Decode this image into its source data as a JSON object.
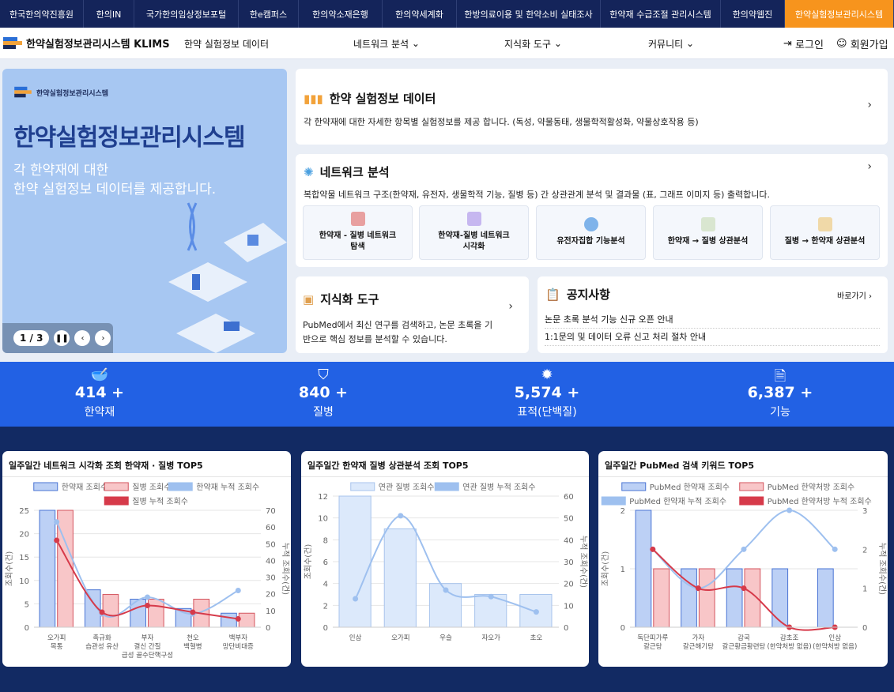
{
  "topbar": [
    "한국한의약진흥원",
    "한의IN",
    "국가한의임상정보포털",
    "한e캠퍼스",
    "한의약소재은행",
    "한의약세계화",
    "한방의료이용 및 한약소비 실태조사",
    "한약재 수급조절 관리시스템",
    "한의약웹진",
    "한약실험정보관리시스템"
  ],
  "header": {
    "logo": "한약실험정보관리시스템 KLIMS",
    "nav": [
      "한약 실험정보 데이터",
      "네트워크 분석",
      "지식화 도구",
      "커뮤니티"
    ],
    "login": "로그인",
    "signup": "회원가입"
  },
  "hero": {
    "brand": "한약실험정보관리시스템",
    "title": "한약실험정보관리시스템",
    "line1": "각 한약재에 대한",
    "line2": "한약 실험정보 데이터를 제공합니다.",
    "page": "1 / 3"
  },
  "data_card": {
    "title": "한약 실험정보 데이터",
    "desc": "각 한약재에 대한 자세한 항목별 실험정보를 제공 합니다. (독성, 약물동태, 생물학적활성화, 약물상호작용 등)"
  },
  "network_card": {
    "title": "네트워크 분석",
    "desc": "복합약물 네트워크 구조(한약재, 유전자, 생물학적 기능, 질병 등) 간 상관관계 분석 및 결과물 (표, 그래프 이미지 등) 출력합니다.",
    "tiles": [
      [
        "한약재 - 질병 네트워크",
        "탐색"
      ],
      [
        "한약재-질병 네트워크",
        "시각화"
      ],
      [
        "유전자집합 기능분석",
        ""
      ],
      [
        "한약재 → 질병 상관분석",
        ""
      ],
      [
        "질병 → 한약재 상관분석",
        ""
      ]
    ]
  },
  "knowledge_card": {
    "title": "지식화 도구",
    "desc1": "PubMed에서 최신 연구를 검색하고, 논문 초록을 기",
    "desc2": "반으로 핵심 정보를 분석할 수 있습니다."
  },
  "notice": {
    "title": "공지사항",
    "more": "바로가기",
    "items": [
      "논문 초록 분석 기능 신규 오픈 안내",
      "1:1문의 및 데이터 오류 신고 처리 절차 안내"
    ]
  },
  "stats": [
    {
      "icon": "herb-bowl-icon",
      "value": "414 +",
      "label": "한약재"
    },
    {
      "icon": "shield-icon",
      "value": "840 +",
      "label": "질병"
    },
    {
      "icon": "virus-icon",
      "value": "5,574 +",
      "label": "표적(단백질)"
    },
    {
      "icon": "document-icon",
      "value": "6,387 +",
      "label": "기능"
    }
  ],
  "colors": {
    "navy": "#14245a",
    "accent": "#f7941d",
    "blue": "#2261e4"
  },
  "chart_data": [
    {
      "type": "bar",
      "title": "일주일간 네트워크 시각화 조회 한약재 · 질병 TOP5",
      "ylabel": "조회수(건)",
      "y2label": "누적 조회수(건)",
      "ylim": [
        0,
        25
      ],
      "y2lim": [
        0,
        70
      ],
      "yticks": [
        0,
        5,
        10,
        15,
        20,
        25
      ],
      "y2ticks": [
        0,
        10,
        20,
        30,
        40,
        50,
        60,
        70
      ],
      "categories": [
        [
          "오가피",
          "목통"
        ],
        [
          "촉규화",
          "습관성 유산"
        ],
        [
          "부자",
          "결신 간질",
          "급성 골수단핵구성"
        ],
        [
          "천오",
          "백혈병"
        ],
        [
          "백부자",
          "망단비대증"
        ]
      ],
      "bars": [
        {
          "name": "한약재 조회수",
          "values": [
            25,
            8,
            6,
            4,
            3
          ],
          "fill": "#bcd0f5",
          "stroke": "#4a74d4"
        },
        {
          "name": "질병 조회수",
          "values": [
            25,
            7,
            6,
            6,
            3
          ],
          "fill": "#f8c6c8",
          "stroke": "#d4545e"
        }
      ],
      "lines": [
        {
          "name": "한약재 누적 조회수",
          "values": [
            63,
            8,
            18,
            8,
            22
          ],
          "color": "#9ec0ef"
        },
        {
          "name": "질병 누적 조회수",
          "values": [
            52,
            9,
            13,
            9,
            5
          ],
          "color": "#d63a4a"
        }
      ]
    },
    {
      "type": "bar",
      "title": "일주일간 한약재 질병 상관분석 조회 TOP5",
      "ylabel": "조회수(건)",
      "y2label": "누적 조회수(건)",
      "ylim": [
        0,
        12
      ],
      "y2lim": [
        0,
        60
      ],
      "yticks": [
        0,
        2,
        4,
        6,
        8,
        10,
        12
      ],
      "y2ticks": [
        0,
        10,
        20,
        30,
        40,
        50,
        60
      ],
      "categories": [
        [
          "인삼"
        ],
        [
          "오가피"
        ],
        [
          "우슬"
        ],
        [
          "자오가"
        ],
        [
          "초오"
        ]
      ],
      "bars": [
        {
          "name": "연관 질병 조회수",
          "values": [
            12,
            9,
            4,
            3,
            3
          ],
          "fill": "#dce9fb",
          "stroke": "#a8c4ec"
        }
      ],
      "lines": [
        {
          "name": "연관 질병 누적 조회수",
          "values": [
            13,
            51,
            17,
            14,
            7
          ],
          "color": "#9ec0ef"
        }
      ]
    },
    {
      "type": "bar",
      "title": "일주일간 PubMed 검색 키워드 TOP5",
      "ylabel": "조회수(건)",
      "y2label": "누적 조회수(건)",
      "ylim": [
        0,
        2
      ],
      "y2lim": [
        0,
        3
      ],
      "yticks": [
        0,
        1,
        2
      ],
      "y2ticks": [
        0,
        1,
        2,
        3
      ],
      "categories": [
        [
          "독단피가루",
          "갈근탕"
        ],
        [
          "가자",
          "갈근해기탕"
        ],
        [
          "감국",
          "갈근황금황련탕"
        ],
        [
          "감초조",
          "(한약처방 없음)"
        ],
        [
          "인삼",
          "(한약처방 없음)"
        ]
      ],
      "bars": [
        {
          "name": "PubMed 한약재 조회수",
          "values": [
            2,
            1,
            1,
            1,
            1
          ],
          "fill": "#bcd0f5",
          "stroke": "#4a74d4"
        },
        {
          "name": "PubMed 한약처방 조회수",
          "values": [
            1,
            1,
            1,
            0,
            0
          ],
          "fill": "#f8c6c8",
          "stroke": "#d4545e"
        }
      ],
      "lines": [
        {
          "name": "PubMed 한약재 누적 조회수",
          "values": [
            2,
            1,
            2,
            3,
            2
          ],
          "color": "#9ec0ef"
        },
        {
          "name": "PubMed 한약처방 누적 조회수",
          "values": [
            2,
            1,
            1,
            0,
            0
          ],
          "color": "#d63a4a"
        }
      ]
    }
  ]
}
